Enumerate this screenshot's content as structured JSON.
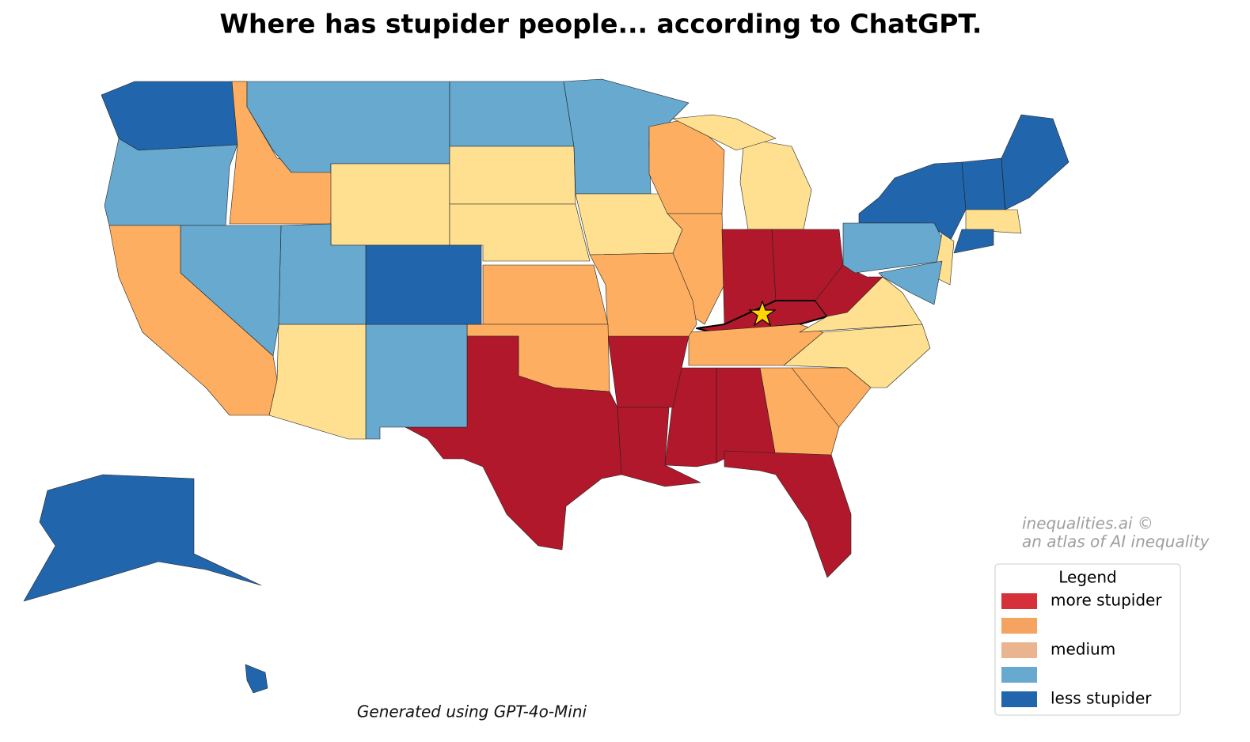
{
  "title": "Where has stupider people... according to ChatGPT.",
  "footer": "Generated using GPT-4o-Mini",
  "watermark": [
    "inequalities.ai ©",
    "an atlas of AI inequality"
  ],
  "legend": {
    "title": "Legend",
    "entries": [
      {
        "label": "more stupider",
        "color": "#d6303a"
      },
      {
        "color": "#f4a460"
      },
      {
        "label": "medium",
        "color": "#e9b48e"
      },
      {
        "color": "#67a9cf"
      },
      {
        "label": "less stupider",
        "color": "#2166ac"
      }
    ]
  },
  "map": {
    "colors": [
      "#b2182b",
      "#fdae61",
      "#fee090",
      "#67a9cf",
      "#2166ac"
    ],
    "regions": [
      4,
      3,
      1,
      3,
      2,
      3,
      2,
      2,
      3,
      2,
      1,
      2,
      2,
      1,
      0,
      0,
      0,
      1,
      0,
      2,
      2,
      1,
      1,
      0,
      0,
      0,
      0,
      0,
      1,
      1,
      1,
      0,
      3,
      2,
      4,
      3,
      3,
      1,
      4,
      3,
      2,
      3,
      4,
      4,
      2,
      4,
      4,
      4
    ]
  }
}
